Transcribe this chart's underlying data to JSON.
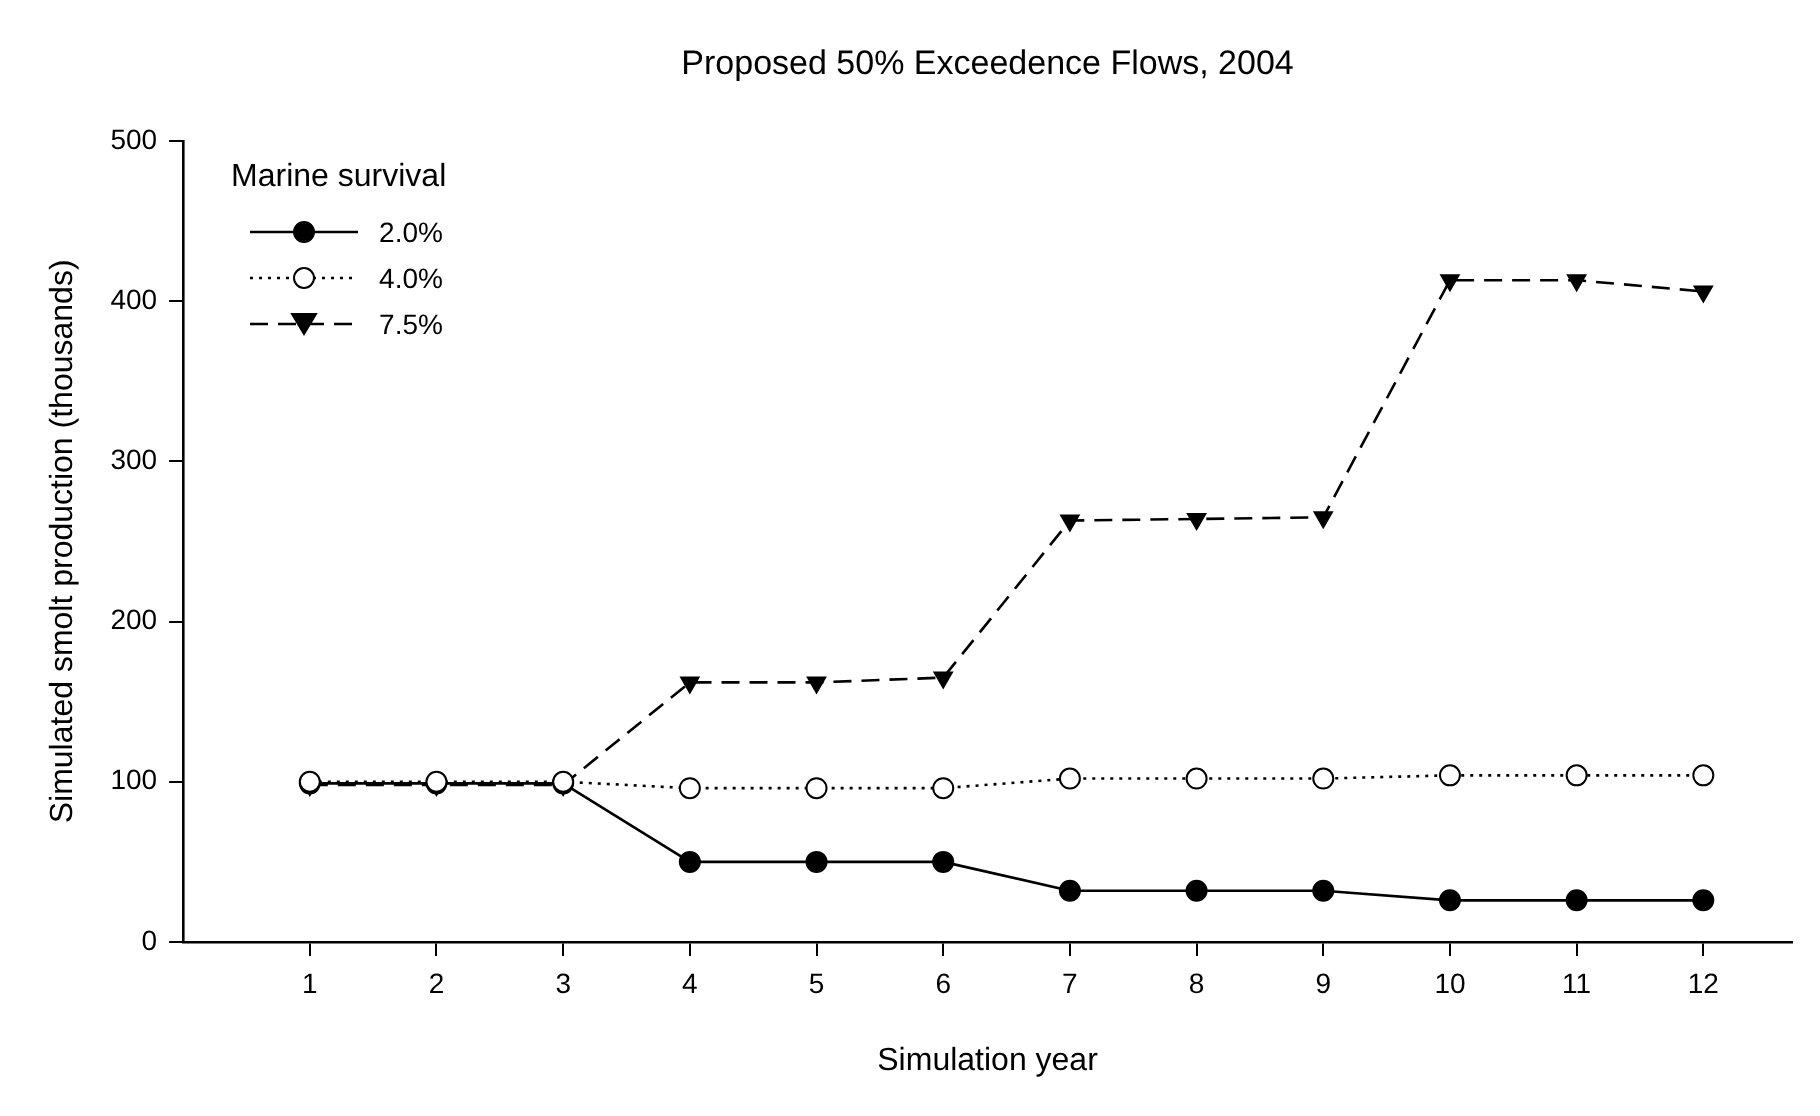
{
  "chart_data": {
    "type": "line",
    "title": "Proposed 50% Exceedence Flows, 2004",
    "xlabel": "Simulation year",
    "ylabel": "Simulated smolt production (thousands)",
    "legend_title": "Marine survival",
    "legend": "top left",
    "grid": false,
    "x": [
      1,
      2,
      3,
      4,
      5,
      6,
      7,
      8,
      9,
      10,
      11,
      12
    ],
    "xlim": [
      0,
      12.7
    ],
    "xticks": [
      1,
      2,
      3,
      4,
      5,
      6,
      7,
      8,
      9,
      10,
      11,
      12
    ],
    "ylim": [
      0,
      500
    ],
    "yticks": [
      0,
      100,
      200,
      300,
      400,
      500
    ],
    "series": [
      {
        "name": "2.0%",
        "color": "#000000",
        "marker": "circle",
        "line_style": "solid",
        "values": [
          99,
          99,
          99,
          50,
          50,
          50,
          32,
          32,
          32,
          26,
          26,
          26
        ]
      },
      {
        "name": "4.0%",
        "color": "#000000",
        "marker": "circle",
        "line_style": "dotted",
        "values": [
          100,
          100,
          100,
          96,
          96,
          96,
          102,
          102,
          102,
          104,
          104,
          104
        ]
      },
      {
        "name": "7.5%",
        "color": "#000000",
        "marker": "triangle",
        "line_style": "dashed",
        "values": [
          98,
          98,
          98,
          162,
          162,
          165,
          263,
          264,
          265,
          413,
          413,
          406
        ]
      }
    ]
  }
}
